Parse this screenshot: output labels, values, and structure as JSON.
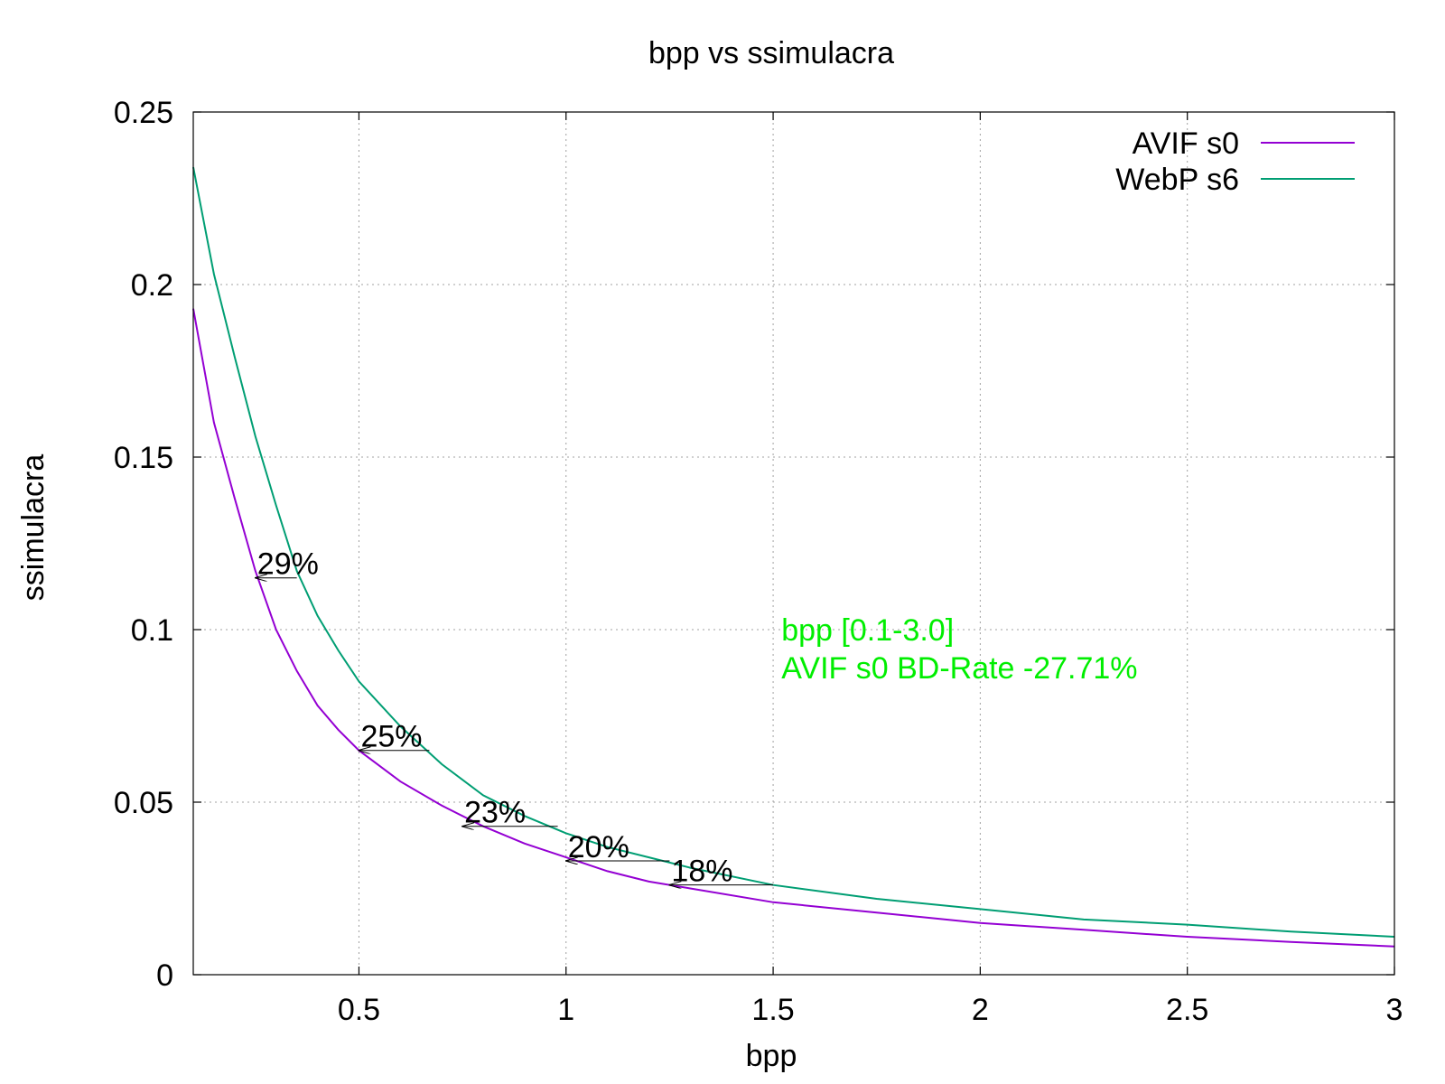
{
  "chart_data": {
    "type": "line",
    "title": "bpp vs ssimulacra",
    "xlabel": "bpp",
    "ylabel": "ssimulacra",
    "xlim": [
      0.1,
      3.0
    ],
    "ylim": [
      0,
      0.25
    ],
    "xticks": [
      {
        "value": 0.5,
        "label": "0.5"
      },
      {
        "value": 1.0,
        "label": "1"
      },
      {
        "value": 1.5,
        "label": "1.5"
      },
      {
        "value": 2.0,
        "label": "2"
      },
      {
        "value": 2.5,
        "label": "2.5"
      },
      {
        "value": 3.0,
        "label": "3"
      }
    ],
    "yticks": [
      {
        "value": 0,
        "label": "0"
      },
      {
        "value": 0.05,
        "label": "0.05"
      },
      {
        "value": 0.1,
        "label": "0.1"
      },
      {
        "value": 0.15,
        "label": "0.15"
      },
      {
        "value": 0.2,
        "label": "0.2"
      },
      {
        "value": 0.25,
        "label": "0.25"
      }
    ],
    "grid": true,
    "legend_position": "top-right",
    "series": [
      {
        "name": "AVIF s0",
        "color": "#9400d3",
        "points": [
          [
            0.1,
            0.193
          ],
          [
            0.15,
            0.16
          ],
          [
            0.2,
            0.138
          ],
          [
            0.25,
            0.117
          ],
          [
            0.3,
            0.1
          ],
          [
            0.35,
            0.088
          ],
          [
            0.4,
            0.078
          ],
          [
            0.45,
            0.071
          ],
          [
            0.5,
            0.065
          ],
          [
            0.6,
            0.056
          ],
          [
            0.7,
            0.049
          ],
          [
            0.8,
            0.043
          ],
          [
            0.9,
            0.038
          ],
          [
            1.0,
            0.034
          ],
          [
            1.1,
            0.03
          ],
          [
            1.2,
            0.027
          ],
          [
            1.3,
            0.025
          ],
          [
            1.5,
            0.021
          ],
          [
            1.75,
            0.018
          ],
          [
            2.0,
            0.015
          ],
          [
            2.25,
            0.013
          ],
          [
            2.5,
            0.011
          ],
          [
            2.75,
            0.0095
          ],
          [
            3.0,
            0.0082
          ]
        ]
      },
      {
        "name": "WebP s6",
        "color": "#009e73",
        "points": [
          [
            0.1,
            0.234
          ],
          [
            0.15,
            0.203
          ],
          [
            0.2,
            0.179
          ],
          [
            0.25,
            0.156
          ],
          [
            0.3,
            0.136
          ],
          [
            0.35,
            0.117
          ],
          [
            0.4,
            0.104
          ],
          [
            0.45,
            0.094
          ],
          [
            0.5,
            0.085
          ],
          [
            0.6,
            0.072
          ],
          [
            0.7,
            0.061
          ],
          [
            0.8,
            0.052
          ],
          [
            0.9,
            0.046
          ],
          [
            1.0,
            0.041
          ],
          [
            1.1,
            0.037
          ],
          [
            1.2,
            0.034
          ],
          [
            1.3,
            0.031
          ],
          [
            1.5,
            0.026
          ],
          [
            1.75,
            0.022
          ],
          [
            2.0,
            0.019
          ],
          [
            2.25,
            0.016
          ],
          [
            2.5,
            0.0145
          ],
          [
            2.75,
            0.0125
          ],
          [
            3.0,
            0.011
          ]
        ]
      }
    ],
    "annotations": [
      {
        "text": "bpp [0.1-3.0]",
        "x": 1.52,
        "y": 0.1,
        "color": "#00ee00"
      },
      {
        "text": "AVIF s0 BD-Rate -27.71%",
        "x": 1.52,
        "y": 0.089,
        "color": "#00ee00"
      }
    ],
    "rate_arrows": [
      {
        "label": "29%",
        "x_from": 0.35,
        "x_to": 0.25,
        "y": 0.115
      },
      {
        "label": "25%",
        "x_from": 0.67,
        "x_to": 0.5,
        "y": 0.065
      },
      {
        "label": "23%",
        "x_from": 0.98,
        "x_to": 0.75,
        "y": 0.043
      },
      {
        "label": "20%",
        "x_from": 1.25,
        "x_to": 1.0,
        "y": 0.033
      },
      {
        "label": "18%",
        "x_from": 1.5,
        "x_to": 1.25,
        "y": 0.026
      }
    ]
  }
}
